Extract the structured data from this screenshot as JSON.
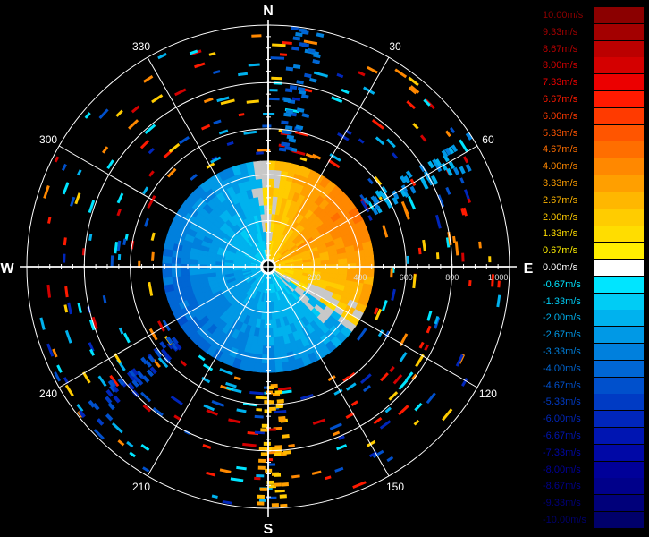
{
  "chart_data": {
    "type": "polar-radar",
    "title": "",
    "center_marker": "radar-site-icon",
    "compass": [
      "N",
      "E",
      "S",
      "W"
    ],
    "azimuth_labels": [
      "30",
      "60",
      "120",
      "150",
      "210",
      "240",
      "300",
      "330"
    ],
    "range_labels": [
      "200",
      "400",
      "600",
      "800",
      "1 000"
    ],
    "range_max": 1050,
    "colorbar": [
      {
        "label": "10.00m/s",
        "value": 10.0,
        "color": "#8b0000"
      },
      {
        "label": "9.33m/s",
        "value": 9.33,
        "color": "#a30000"
      },
      {
        "label": "8.67m/s",
        "value": 8.67,
        "color": "#bb0000"
      },
      {
        "label": "8.00m/s",
        "value": 8.0,
        "color": "#d40000"
      },
      {
        "label": "7.33m/s",
        "value": 7.33,
        "color": "#ec0000"
      },
      {
        "label": "6.67m/s",
        "value": 6.67,
        "color": "#ff1a00"
      },
      {
        "label": "6.00m/s",
        "value": 6.0,
        "color": "#ff3a00"
      },
      {
        "label": "5.33m/s",
        "value": 5.33,
        "color": "#ff5500"
      },
      {
        "label": "4.67m/s",
        "value": 4.67,
        "color": "#ff6e00"
      },
      {
        "label": "4.00m/s",
        "value": 4.0,
        "color": "#ff8800"
      },
      {
        "label": "3.33m/s",
        "value": 3.33,
        "color": "#ff9f00"
      },
      {
        "label": "2.67m/s",
        "value": 2.67,
        "color": "#ffb700"
      },
      {
        "label": "2.00m/s",
        "value": 2.0,
        "color": "#ffcc00"
      },
      {
        "label": "1.33m/s",
        "value": 1.33,
        "color": "#ffdd00"
      },
      {
        "label": "0.67m/s",
        "value": 0.67,
        "color": "#ffee00"
      },
      {
        "label": "0.00m/s",
        "value": 0.0,
        "color": "#ffffff"
      },
      {
        "label": "-0.67m/s",
        "value": -0.67,
        "color": "#00e5ff"
      },
      {
        "label": "-1.33m/s",
        "value": -1.33,
        "color": "#00ccf5"
      },
      {
        "label": "-2.00m/s",
        "value": -2.0,
        "color": "#00b2ee"
      },
      {
        "label": "-2.67m/s",
        "value": -2.67,
        "color": "#0099e6"
      },
      {
        "label": "-3.33m/s",
        "value": -3.33,
        "color": "#0080dd"
      },
      {
        "label": "-4.00m/s",
        "value": -4.0,
        "color": "#0066d4"
      },
      {
        "label": "-4.67m/s",
        "value": -4.67,
        "color": "#0050cc"
      },
      {
        "label": "-5.33m/s",
        "value": -5.33,
        "color": "#003bc4"
      },
      {
        "label": "-6.00m/s",
        "value": -6.0,
        "color": "#0026bb"
      },
      {
        "label": "-6.67m/s",
        "value": -6.67,
        "color": "#0015b2"
      },
      {
        "label": "-7.33m/s",
        "value": -7.33,
        "color": "#0008a6"
      },
      {
        "label": "-8.00m/s",
        "value": -8.0,
        "color": "#000099"
      },
      {
        "label": "-8.67m/s",
        "value": -8.67,
        "color": "#00008a"
      },
      {
        "label": "-9.33m/s",
        "value": -9.33,
        "color": "#00007a"
      },
      {
        "label": "-10.00m/s",
        "value": -10.0,
        "color": "#00006a"
      }
    ],
    "velocity_field": {
      "inner_range": 460,
      "approx_zero_line_azimuths": [
        355,
        115,
        140
      ],
      "receding_sector": [
        355,
        125
      ],
      "approaching_sector": [
        135,
        355
      ],
      "peak_receding": 4.67,
      "peak_approaching": -5.33
    },
    "clutter_bands": [
      {
        "azimuth": 230,
        "range": [
          500,
          1050
        ],
        "value": -5.33
      },
      {
        "azimuth": 178,
        "range": [
          500,
          1050
        ],
        "value": 2.67
      },
      {
        "azimuth": 10,
        "range": [
          500,
          1050
        ],
        "value": -4.0
      },
      {
        "azimuth": 60,
        "range": [
          500,
          1050
        ],
        "value": -2.67
      }
    ],
    "grid": true
  }
}
